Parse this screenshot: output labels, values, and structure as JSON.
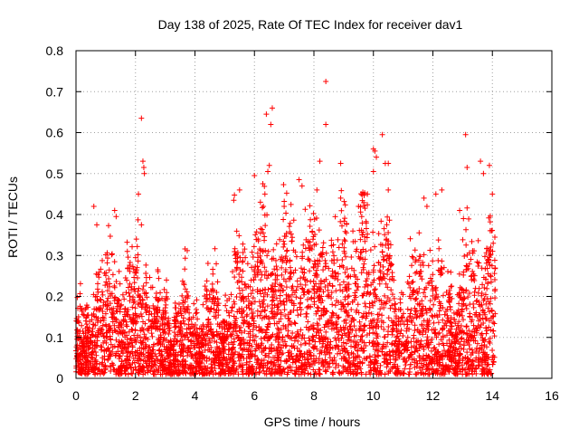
{
  "chart_data": {
    "type": "scatter",
    "title": "Day 138 of 2025, Rate Of TEC Index for receiver dav1",
    "xlabel": "GPS time / hours",
    "ylabel": "ROTI / TECUs",
    "xlim": [
      0,
      16
    ],
    "ylim": [
      0,
      0.8
    ],
    "x_ticks": [
      0,
      2,
      4,
      6,
      8,
      10,
      12,
      14,
      16
    ],
    "y_ticks": [
      0,
      0.1,
      0.2,
      0.3,
      0.4,
      0.5,
      0.6,
      0.7,
      0.8
    ],
    "x_tick_labels": [
      "0",
      "2",
      "4",
      "6",
      "8",
      "10",
      "12",
      "14",
      "16"
    ],
    "y_tick_labels": [
      "0",
      "0.1",
      "0.2",
      "0.3",
      "0.4",
      "0.5",
      "0.6",
      "0.7",
      "0.8"
    ],
    "grid": true,
    "marker": "+",
    "marker_color": "#ff0000",
    "x_data_range": [
      0,
      14.1
    ],
    "series": [
      {
        "points": [
          [
            2.2,
            0.635
          ],
          [
            2.25,
            0.53
          ],
          [
            2.28,
            0.515
          ],
          [
            2.3,
            0.5
          ],
          [
            2.1,
            0.45
          ],
          [
            6.4,
            0.645
          ],
          [
            6.6,
            0.66
          ],
          [
            6.55,
            0.62
          ],
          [
            6.5,
            0.52
          ],
          [
            6.45,
            0.505
          ],
          [
            6.0,
            0.495
          ],
          [
            8.4,
            0.725
          ],
          [
            8.4,
            0.62
          ],
          [
            8.2,
            0.53
          ],
          [
            8.9,
            0.525
          ],
          [
            10.0,
            0.56
          ],
          [
            10.05,
            0.555
          ],
          [
            10.1,
            0.54
          ],
          [
            10.3,
            0.595
          ],
          [
            10.4,
            0.525
          ],
          [
            10.5,
            0.525
          ],
          [
            10.0,
            0.505
          ],
          [
            9.8,
            0.45
          ],
          [
            10.5,
            0.46
          ],
          [
            13.1,
            0.595
          ],
          [
            13.15,
            0.515
          ],
          [
            13.6,
            0.53
          ],
          [
            13.9,
            0.52
          ],
          [
            13.7,
            0.5
          ],
          [
            14.0,
            0.45
          ],
          [
            12.3,
            0.46
          ],
          [
            12.1,
            0.45
          ],
          [
            7.5,
            0.485
          ],
          [
            7.6,
            0.47
          ],
          [
            5.5,
            0.46
          ],
          [
            8.1,
            0.46
          ],
          [
            8.9,
            0.44
          ],
          [
            11.7,
            0.44
          ],
          [
            11.8,
            0.42
          ],
          [
            0.6,
            0.42
          ],
          [
            1.3,
            0.41
          ],
          [
            1.35,
            0.395
          ],
          [
            0.7,
            0.375
          ],
          [
            2.2,
            0.375
          ],
          [
            6.2,
            0.43
          ],
          [
            6.3,
            0.42
          ],
          [
            7.0,
            0.42
          ],
          [
            9.5,
            0.42
          ],
          [
            12.9,
            0.41
          ]
        ]
      }
    ]
  }
}
